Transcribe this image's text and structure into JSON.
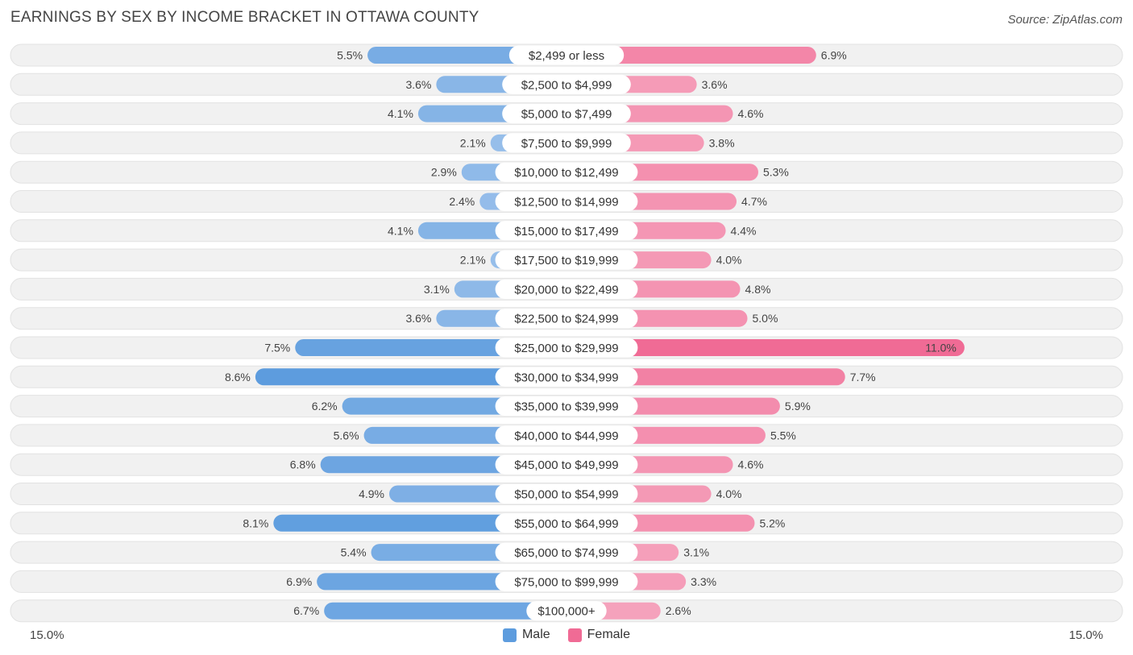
{
  "header": {
    "title": "EARNINGS BY SEX BY INCOME BRACKET IN OTTAWA COUNTY",
    "source": "Source: ZipAtlas.com"
  },
  "axis": {
    "left_label": "15.0%",
    "right_label": "15.0%"
  },
  "legend": {
    "male_label": "Male",
    "female_label": "Female"
  },
  "colors": {
    "male": "#7fb0e3",
    "male_strong": "#5d9cde",
    "female": "#f59ab6",
    "female_strong": "#f06b95",
    "row_bg": "#f1f1f1"
  },
  "chart_data": {
    "type": "bar",
    "orientation": "horizontal-diverging",
    "title": "EARNINGS BY SEX BY INCOME BRACKET IN OTTAWA COUNTY",
    "xlim": [
      -15.0,
      15.0
    ],
    "categories": [
      "$2,499 or less",
      "$2,500 to $4,999",
      "$5,000 to $7,499",
      "$7,500 to $9,999",
      "$10,000 to $12,499",
      "$12,500 to $14,999",
      "$15,000 to $17,499",
      "$17,500 to $19,999",
      "$20,000 to $22,499",
      "$22,500 to $24,999",
      "$25,000 to $29,999",
      "$30,000 to $34,999",
      "$35,000 to $39,999",
      "$40,000 to $44,999",
      "$45,000 to $49,999",
      "$50,000 to $54,999",
      "$55,000 to $64,999",
      "$65,000 to $74,999",
      "$75,000 to $99,999",
      "$100,000+"
    ],
    "series": [
      {
        "name": "Male",
        "values": [
          5.5,
          3.6,
          4.1,
          2.1,
          2.9,
          2.4,
          4.1,
          2.1,
          3.1,
          3.6,
          7.5,
          8.6,
          6.2,
          5.6,
          6.8,
          4.9,
          8.1,
          5.4,
          6.9,
          6.7
        ],
        "labels": [
          "5.5%",
          "3.6%",
          "4.1%",
          "2.1%",
          "2.9%",
          "2.4%",
          "4.1%",
          "2.1%",
          "3.1%",
          "3.6%",
          "7.5%",
          "8.6%",
          "6.2%",
          "5.6%",
          "6.8%",
          "4.9%",
          "8.1%",
          "5.4%",
          "6.9%",
          "6.7%"
        ]
      },
      {
        "name": "Female",
        "values": [
          6.9,
          3.6,
          4.6,
          3.8,
          5.3,
          4.7,
          4.4,
          4.0,
          4.8,
          5.0,
          11.0,
          7.7,
          5.9,
          5.5,
          4.6,
          4.0,
          5.2,
          3.1,
          3.3,
          2.6
        ],
        "labels": [
          "6.9%",
          "3.6%",
          "4.6%",
          "3.8%",
          "5.3%",
          "4.7%",
          "4.4%",
          "4.0%",
          "4.8%",
          "5.0%",
          "11.0%",
          "7.7%",
          "5.9%",
          "5.5%",
          "4.6%",
          "4.0%",
          "5.2%",
          "3.1%",
          "3.3%",
          "2.6%"
        ]
      }
    ]
  }
}
